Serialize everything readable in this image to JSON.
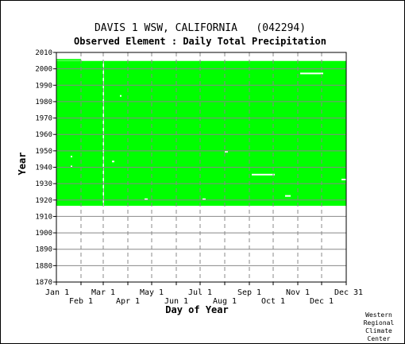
{
  "chart_data": {
    "type": "heatmap",
    "title": "DAVIS 1 WSW, CALIFORNIA   (042294)",
    "subtitle": "Observed Element : Daily Total Precipitation",
    "xlabel": "Day of Year",
    "ylabel": "Year",
    "xlim": [
      1,
      366
    ],
    "ylim": [
      1870,
      2010
    ],
    "y_ticks": [
      1870,
      1880,
      1890,
      1900,
      1910,
      1920,
      1930,
      1940,
      1950,
      1960,
      1970,
      1980,
      1990,
      2000,
      2010
    ],
    "x_ticks_top": [
      {
        "label": "Jan 1",
        "day": 1
      },
      {
        "label": "Mar 1",
        "day": 60
      },
      {
        "label": "May 1",
        "day": 121
      },
      {
        "label": "Jul 1",
        "day": 182
      },
      {
        "label": "Sep 1",
        "day": 244
      },
      {
        "label": "Nov 1",
        "day": 305
      },
      {
        "label": "Dec 31",
        "day": 366
      }
    ],
    "x_ticks_bottom": [
      {
        "label": "Feb 1",
        "day": 32
      },
      {
        "label": "Apr 1",
        "day": 91
      },
      {
        "label": "Jun 1",
        "day": 152
      },
      {
        "label": "Aug 1",
        "day": 213
      },
      {
        "label": "Oct 1",
        "day": 274
      },
      {
        "label": "Dec 1",
        "day": 335
      }
    ],
    "grid": true,
    "data_color": "#00ff00",
    "coverage": {
      "day_start": 1,
      "day_end": 366,
      "year_start": 1916.5,
      "year_end": 2004.8
    },
    "partial_record": {
      "year": 2005,
      "day_start": 1,
      "day_end": 32
    },
    "missing": [
      {
        "year": 1997.2,
        "day_start": 308,
        "day_end": 337
      },
      {
        "year": 1935.5,
        "day_start": 247,
        "day_end": 276
      },
      {
        "year": 1922.5,
        "day_start": 289,
        "day_end": 296
      },
      {
        "year": 1932.5,
        "day_start": 360,
        "day_end": 366
      },
      {
        "year": 1920.5,
        "day_start": 112,
        "day_end": 116
      },
      {
        "year": 1920.5,
        "day_start": 185,
        "day_end": 189
      },
      {
        "year": 1949.5,
        "day_start": 213,
        "day_end": 217
      },
      {
        "year": 1943.5,
        "day_start": 71,
        "day_end": 74
      },
      {
        "year": 1940.5,
        "day_start": 19,
        "day_end": 21
      },
      {
        "year": 1983.5,
        "day_start": 81,
        "day_end": 83
      },
      {
        "year": 1946.5,
        "day_start": 19,
        "day_end": 21
      }
    ],
    "missing_days": [
      60
    ],
    "attribution": [
      "Western",
      "Regional",
      "Climate",
      "Center"
    ]
  }
}
